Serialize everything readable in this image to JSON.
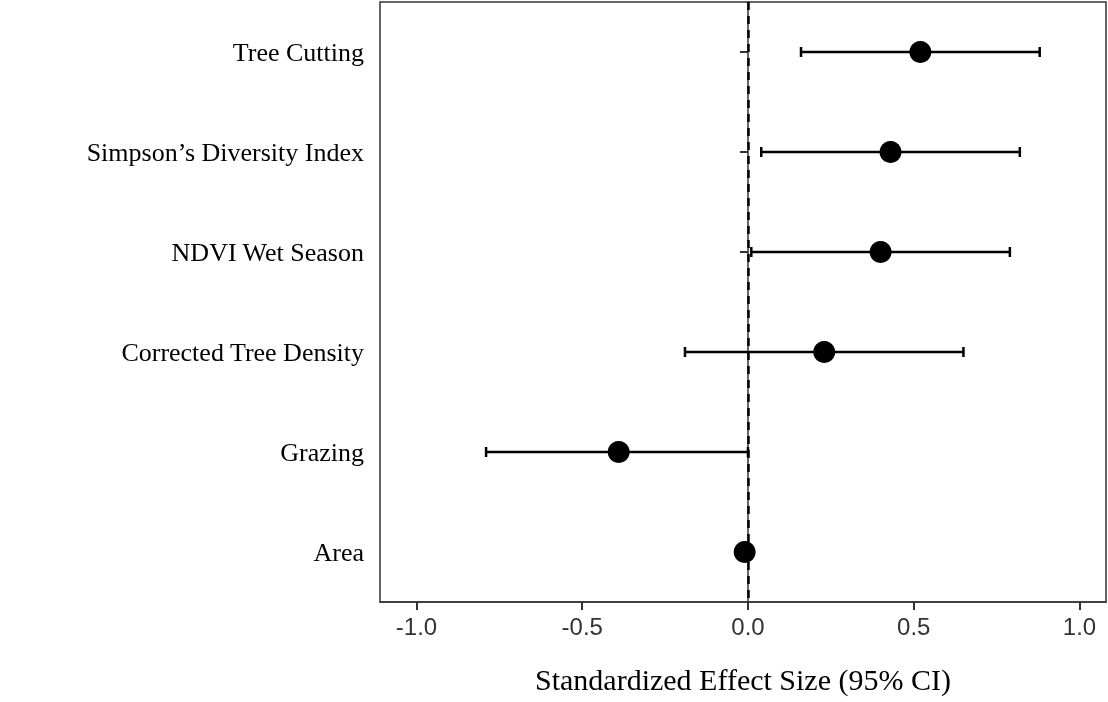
{
  "chart_data": {
    "type": "scatter",
    "orientation": "horizontal",
    "xlabel": "Standardized Effect Size (95% CI)",
    "categories": [
      "Tree Cutting",
      "Simpson’s Diversity Index",
      "NDVI Wet Season",
      "Corrected Tree Density",
      "Grazing",
      "Area"
    ],
    "values": [
      0.52,
      0.43,
      0.4,
      0.23,
      -0.39,
      -0.01
    ],
    "errors": [
      [
        0.16,
        0.88
      ],
      [
        0.04,
        0.82
      ],
      [
        0.01,
        0.79
      ],
      [
        -0.19,
        0.65
      ],
      [
        -0.79,
        0.0
      ],
      null
    ],
    "color": "#000000",
    "marker": "circle",
    "grid": false,
    "xlim": [
      -1.11,
      1.08
    ],
    "xticks": [
      {
        "value": -1,
        "label": "-1.0"
      },
      {
        "value": -0.5,
        "label": "-0.5"
      },
      {
        "value": 0,
        "label": "0.0"
      },
      {
        "value": 0.5,
        "label": "0.5"
      },
      {
        "value": 1,
        "label": "1.0"
      }
    ],
    "ref_lines": [
      {
        "axis": "x",
        "value": 0,
        "label": null,
        "color": "#000000",
        "line_style": "dashed"
      }
    ]
  }
}
